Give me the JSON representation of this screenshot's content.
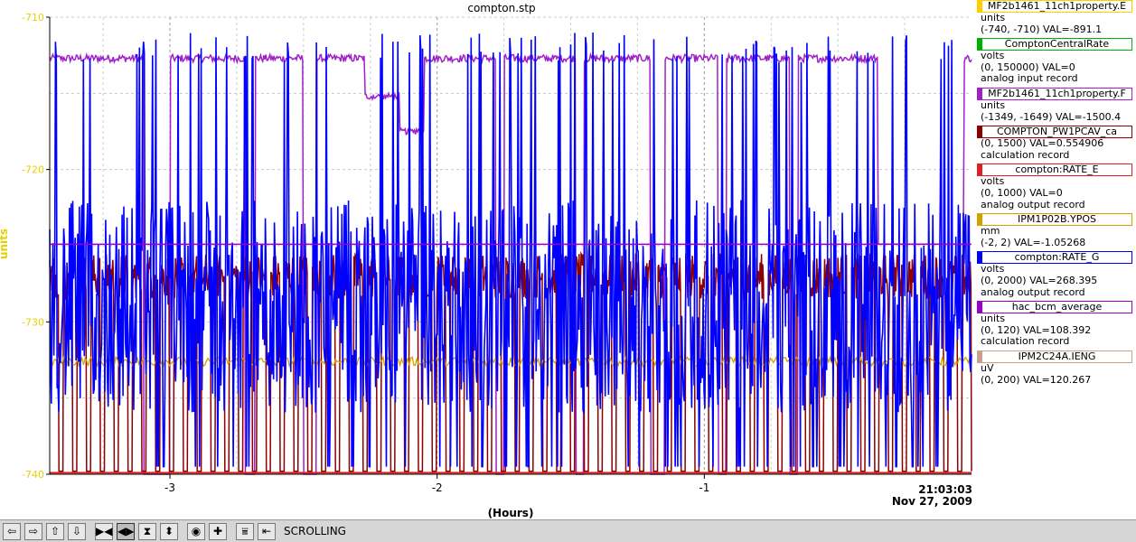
{
  "chart_data": {
    "type": "line",
    "title": "compton.stp",
    "ylabel": "units",
    "xlabel": "(Hours)",
    "ylim": [
      -740,
      -710
    ],
    "xlim": [
      -3.45,
      0
    ],
    "y_ticks": [
      "-710",
      "-720",
      "-730",
      "-740"
    ],
    "y_tick_values": [
      -710,
      -720,
      -730,
      -740
    ],
    "x_ticks": [
      "-3",
      "-2",
      "-1"
    ],
    "x_tick_values": [
      -3,
      -2,
      -1
    ],
    "time_label": "21:03:03",
    "date_label": "Nov 27, 2009",
    "grid": true,
    "series": [
      {
        "name": "MF2b1461_11ch1property.E",
        "color": "#ffcc00",
        "role": "flat"
      },
      {
        "name": "ComptonCentralRate",
        "color": "#00b000",
        "role": "none"
      },
      {
        "name": "MF2b1461_11ch1property.F",
        "color": "#a020c8",
        "role": "purple_high"
      },
      {
        "name": "COMPTON_PW1PCAV_ca",
        "color": "#8b0000",
        "role": "darkred"
      },
      {
        "name": "compton:RATE_E",
        "color": "#e02020",
        "role": "bottom"
      },
      {
        "name": "IPM1P02B.YPOS",
        "color": "#d4a000",
        "role": "orange"
      },
      {
        "name": "compton:RATE_G",
        "color": "#0000ff",
        "role": "blue"
      },
      {
        "name": "hac_bcm_average",
        "color": "#9a00c8",
        "role": "purple_flat"
      },
      {
        "name": "IPM2C24A.IENG",
        "color": "#c8a090",
        "role": "none"
      }
    ]
  },
  "legend": [
    {
      "name": "MF2b1461_11ch1property.E",
      "color": "#ffcc00",
      "lines": [
        "units",
        "(-740, -710) VAL=-891.1"
      ]
    },
    {
      "name": "ComptonCentralRate",
      "color": "#00b000",
      "lines": [
        "volts",
        "(0, 150000) VAL=0",
        "analog input record"
      ]
    },
    {
      "name": "MF2b1461_11ch1property.F",
      "color": "#a020c8",
      "lines": [
        "units",
        "(-1349, -1649) VAL=-1500.4"
      ]
    },
    {
      "name": "COMPTON_PW1PCAV_ca",
      "color": "#8b0000",
      "lines": [
        "(0, 1500) VAL=0.554906",
        "calculation record"
      ]
    },
    {
      "name": "compton:RATE_E",
      "color": "#e02020",
      "lines": [
        "volts",
        "(0, 1000) VAL=0",
        "analog output record"
      ]
    },
    {
      "name": "IPM1P02B.YPOS",
      "color": "#d4a000",
      "lines": [
        "mm",
        "(-2, 2) VAL=-1.05268"
      ]
    },
    {
      "name": "compton:RATE_G",
      "color": "#0000ff",
      "lines": [
        "volts",
        "(0, 2000) VAL=268.395",
        "analog output record"
      ]
    },
    {
      "name": "hac_bcm_average",
      "color": "#9a00c8",
      "lines": [
        "units",
        "(0, 120) VAL=108.392",
        "calculation record"
      ]
    },
    {
      "name": "IPM2C24A.IENG",
      "color": "#c8a090",
      "lines": [
        "uV",
        "(0, 200) VAL=120.267"
      ]
    }
  ],
  "toolbar": {
    "buttons": [
      {
        "name": "pan-left-button",
        "icon": "arrow-left-icon",
        "glyph": "⇦"
      },
      {
        "name": "pan-right-button",
        "icon": "arrow-right-icon",
        "glyph": "⇨"
      },
      {
        "name": "pan-up-button",
        "icon": "arrow-up-icon",
        "glyph": "⇧"
      },
      {
        "name": "pan-down-button",
        "icon": "arrow-down-icon",
        "glyph": "⇩"
      },
      {
        "name": "zoom-in-x-button",
        "icon": "zoom-in-x-icon",
        "glyph": "▶◀"
      },
      {
        "name": "zoom-out-x-button",
        "icon": "zoom-out-x-icon",
        "glyph": "◀▶"
      },
      {
        "name": "zoom-in-y-button",
        "icon": "zoom-in-y-icon",
        "glyph": "⧗"
      },
      {
        "name": "zoom-out-y-button",
        "icon": "zoom-out-y-icon",
        "glyph": "⬍"
      },
      {
        "name": "center-button",
        "icon": "target-icon",
        "glyph": "◉"
      },
      {
        "name": "crosshair-button",
        "icon": "plus-icon",
        "glyph": "✚"
      },
      {
        "name": "autoscale-button",
        "icon": "autoscale-icon",
        "glyph": "⩸"
      },
      {
        "name": "scroll-to-end-button",
        "icon": "scroll-end-icon",
        "glyph": "⇤"
      }
    ],
    "status": "SCROLLING"
  }
}
